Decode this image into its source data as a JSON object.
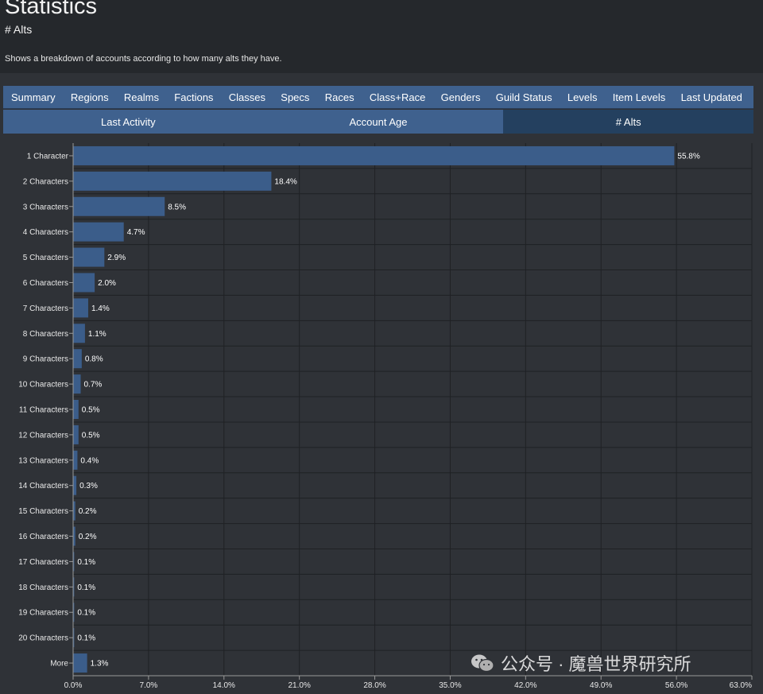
{
  "page": {
    "title": "Statistics",
    "subtitle": "# Alts",
    "description": "Shows a breakdown of accounts according to how many alts they have."
  },
  "tabs_row1": [
    "Summary",
    "Regions",
    "Realms",
    "Factions",
    "Classes",
    "Specs",
    "Races",
    "Class+Race",
    "Genders",
    "Guild Status",
    "Levels",
    "Item Levels",
    "Last Updated"
  ],
  "tabs_row2": [
    {
      "label": "Last Activity",
      "active": false
    },
    {
      "label": "Account Age",
      "active": false
    },
    {
      "label": "# Alts",
      "active": true
    }
  ],
  "colors": {
    "bar": "#3b5d8a",
    "tab": "#3f618e",
    "tab_active": "#24405f",
    "background": "#2f3237"
  },
  "chart_data": {
    "type": "bar",
    "orientation": "horizontal",
    "categories": [
      "1 Character",
      "2 Characters",
      "3 Characters",
      "4 Characters",
      "5 Characters",
      "6 Characters",
      "7 Characters",
      "8 Characters",
      "9 Characters",
      "10 Characters",
      "11 Characters",
      "12 Characters",
      "13 Characters",
      "14 Characters",
      "15 Characters",
      "16 Characters",
      "17 Characters",
      "18 Characters",
      "19 Characters",
      "20 Characters",
      "More"
    ],
    "values": [
      55.8,
      18.4,
      8.5,
      4.7,
      2.9,
      2.0,
      1.4,
      1.1,
      0.8,
      0.7,
      0.5,
      0.5,
      0.4,
      0.3,
      0.2,
      0.2,
      0.1,
      0.1,
      0.1,
      0.1,
      1.3
    ],
    "value_labels": [
      "55.8%",
      "18.4%",
      "8.5%",
      "4.7%",
      "2.9%",
      "2.0%",
      "1.4%",
      "1.1%",
      "0.8%",
      "0.7%",
      "0.5%",
      "0.5%",
      "0.4%",
      "0.3%",
      "0.2%",
      "0.2%",
      "0.1%",
      "0.1%",
      "0.1%",
      "0.1%",
      "1.3%"
    ],
    "xlim": [
      0,
      63
    ],
    "xticks": [
      0,
      7,
      14,
      21,
      28,
      35,
      42,
      49,
      56,
      63
    ],
    "xtick_labels": [
      "0.0%",
      "7.0%",
      "14.0%",
      "21.0%",
      "28.0%",
      "35.0%",
      "42.0%",
      "49.0%",
      "56.0%",
      "63.0%"
    ],
    "grid": true
  },
  "watermark": {
    "text": "公众号 · 魔兽世界研究所",
    "icon": "wechat-icon"
  }
}
